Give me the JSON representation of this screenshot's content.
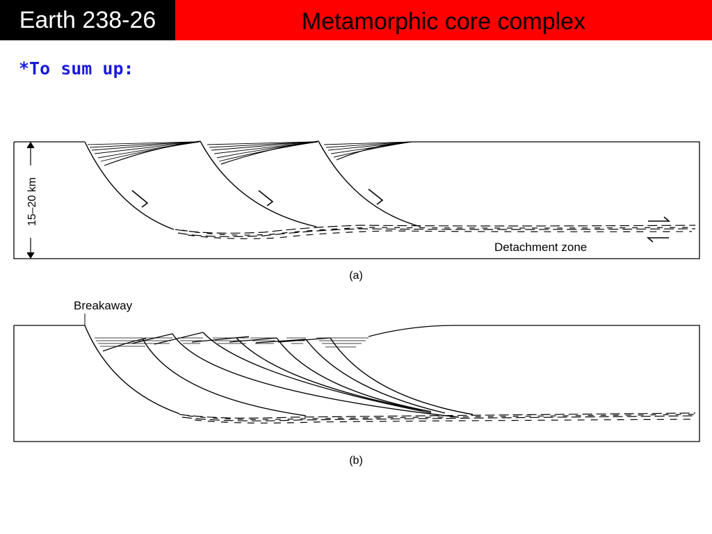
{
  "header": {
    "course": "Earth 238-26",
    "title": "Metamorphic core complex",
    "course_bg": "#000000",
    "title_bg": "#ff0000"
  },
  "subtitle": "*To sum up:",
  "diagram": {
    "panel_a": {
      "scale_label": "15–20 km",
      "zone_label": "Detachment zone",
      "caption": "(a)"
    },
    "panel_b": {
      "breakaway_label": "Breakaway",
      "caption": "(b)"
    }
  }
}
